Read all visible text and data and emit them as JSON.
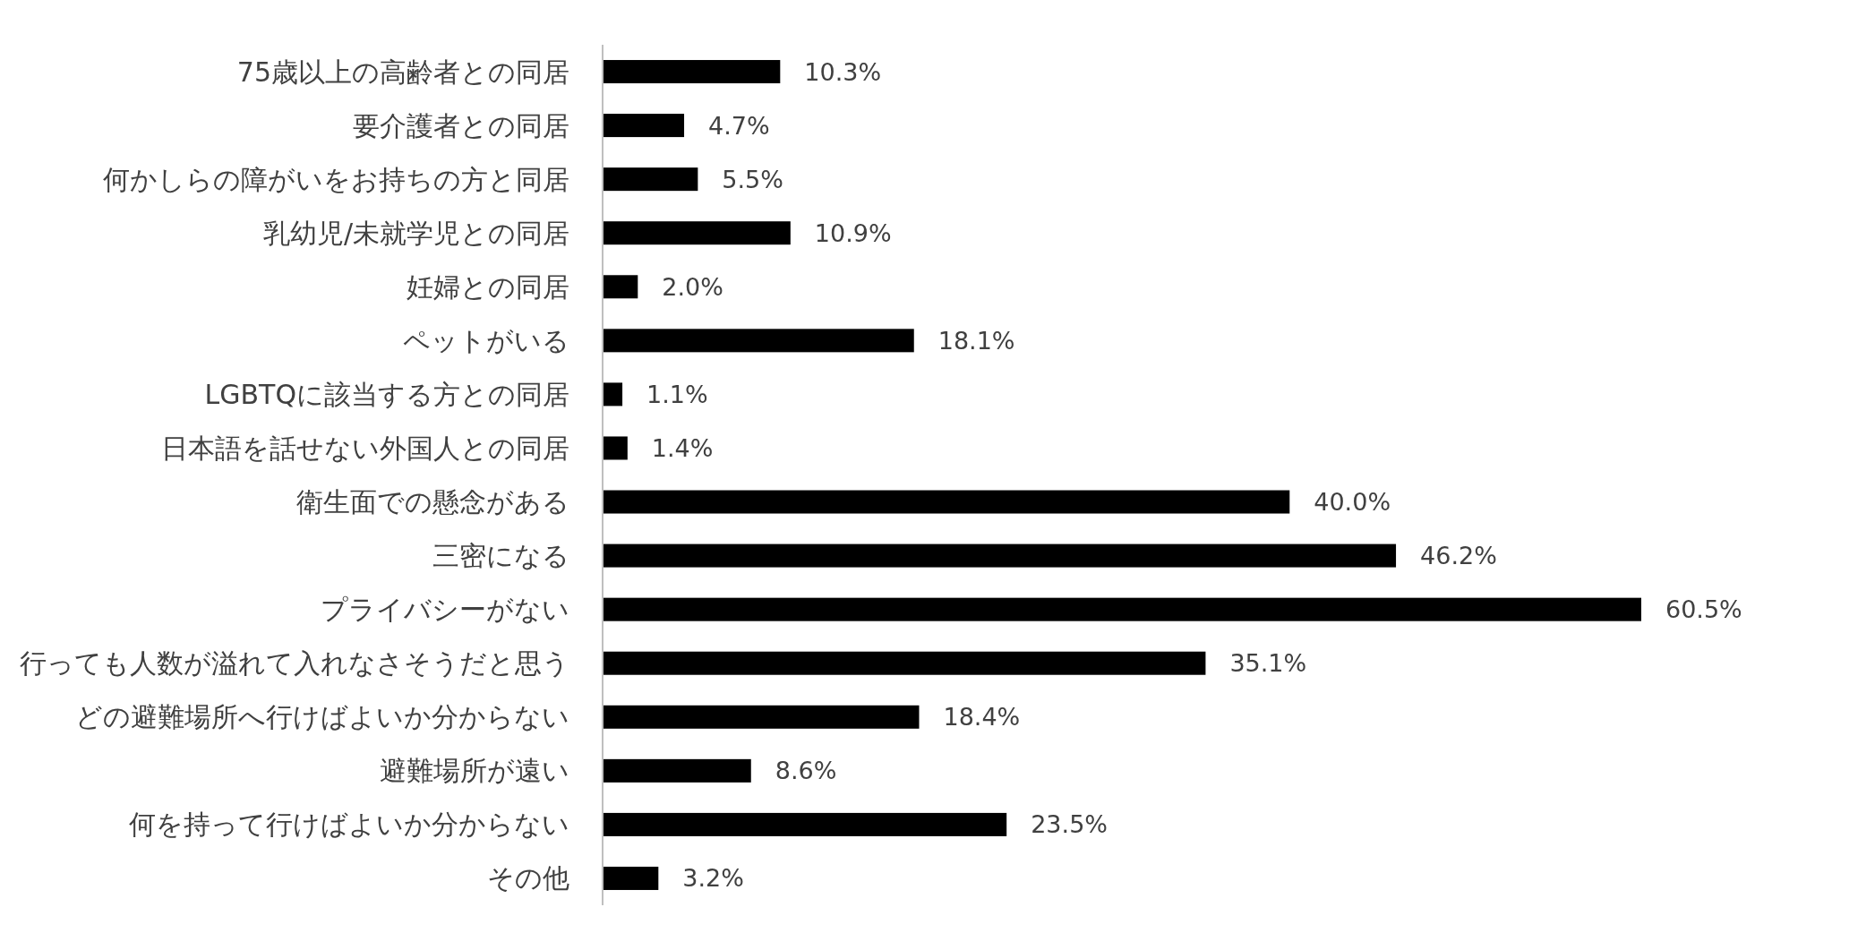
{
  "chart_data": {
    "type": "bar",
    "orientation": "horizontal",
    "color": "#000000",
    "categories": [
      "75歳以上の高齢者との同居",
      "要介護者との同居",
      "何かしらの障がいをお持ちの方と同居",
      "乳幼児/未就学児との同居",
      "妊婦との同居",
      "ペットがいる",
      "LGBTQに該当する方との同居",
      "日本語を話せない外国人との同居",
      "衛生面での懸念がある",
      "三密になる",
      "プライバシーがない",
      "行っても人数が溢れて入れなさそうだと思う",
      "どの避難場所へ行けばよいか分からない",
      "避難場所が遠い",
      "何を持って行けばよいか分からない",
      "その他"
    ],
    "values": [
      10.3,
      4.7,
      5.5,
      10.9,
      2.0,
      18.1,
      1.1,
      1.4,
      40.0,
      46.2,
      60.5,
      35.1,
      18.4,
      8.6,
      23.5,
      3.2
    ],
    "value_labels": [
      "10.3%",
      "4.7%",
      "5.5%",
      "10.9%",
      "2.0%",
      "18.1%",
      "1.1%",
      "1.4%",
      "40.0%",
      "46.2%",
      "60.5%",
      "35.1%",
      "18.4%",
      "8.6%",
      "23.5%",
      "3.2%"
    ]
  }
}
